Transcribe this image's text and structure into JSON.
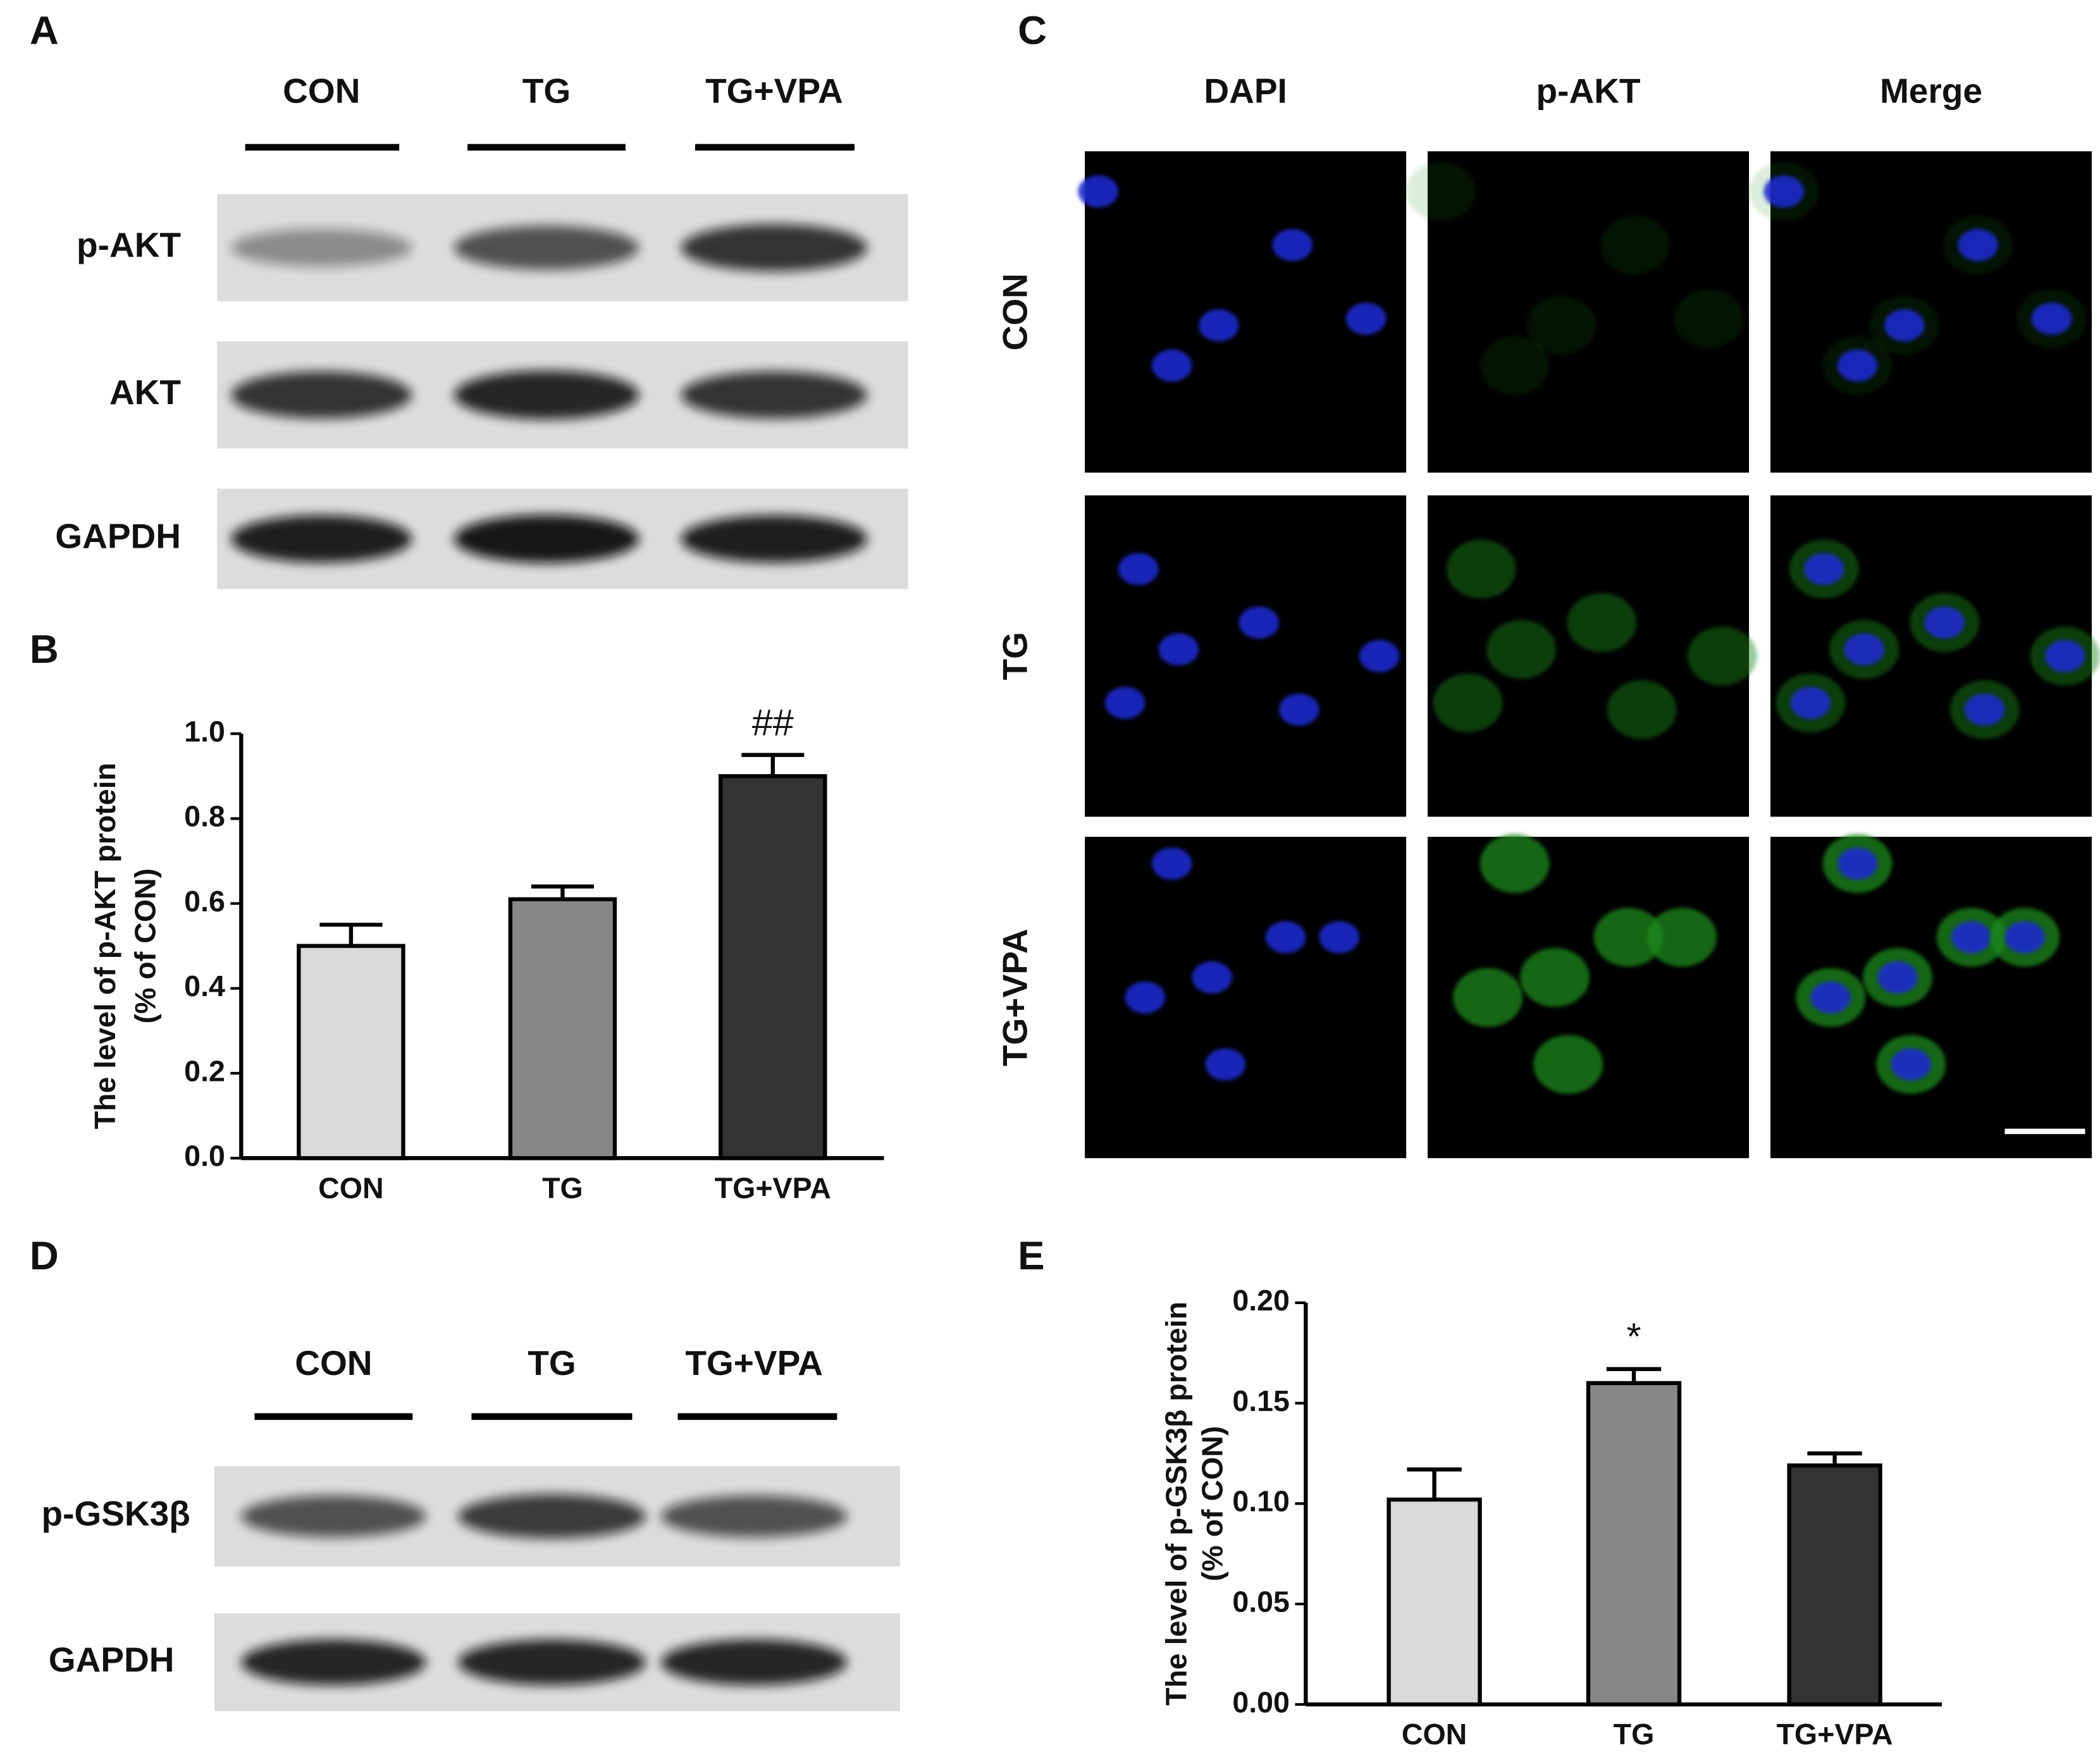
{
  "panel_labels": [
    "A",
    "B",
    "C",
    "D",
    "E"
  ],
  "blot_a": {
    "lanes": [
      "CON",
      "TG",
      "TG+VPA"
    ],
    "rows": [
      "p-AKT",
      "AKT",
      "GAPDH"
    ]
  },
  "imaging_c": {
    "columns": [
      "DAPI",
      "p-AKT",
      "Merge"
    ],
    "rows": [
      "CON",
      "TG",
      "TG+VPA"
    ]
  },
  "blot_d": {
    "lanes": [
      "CON",
      "TG",
      "TG+VPA"
    ],
    "rows": [
      "p-GSK3β",
      "GAPDH"
    ]
  },
  "chart_data": [
    {
      "type": "bar",
      "ylabel": [
        "The level of p-AKT protein",
        "(% of CON)"
      ],
      "categories": [
        "CON",
        "TG",
        "TG+VPA"
      ],
      "values": [
        0.5,
        0.61,
        0.9
      ],
      "errors": [
        0.05,
        0.03,
        0.05
      ],
      "colors": [
        "#d9d9d9",
        "#878787",
        "#333333"
      ],
      "annotations": [
        {
          "x": "TG+VPA",
          "text": "##"
        }
      ],
      "ylim": [
        0,
        1
      ],
      "yticks": [
        {
          "value": 0,
          "label": "0.0"
        },
        0.2,
        0.4,
        0.6,
        0.8,
        {
          "value": 1,
          "label": "1.0"
        }
      ]
    },
    {
      "type": "bar",
      "ylabel": [
        "The level of p-GSK3β  protein",
        "(% of CON)"
      ],
      "categories": [
        "CON",
        "TG",
        "TG+VPA"
      ],
      "values": [
        0.102,
        0.16,
        0.119
      ],
      "errors": [
        0.015,
        0.007,
        0.006
      ],
      "colors": [
        "#d9d9d9",
        "#878787",
        "#333333"
      ],
      "annotations": [
        {
          "x": "TG",
          "text": "*"
        }
      ],
      "ylim": [
        0,
        0.2
      ],
      "yticks": [
        {
          "value": 0,
          "label": "0.00"
        },
        0.05,
        {
          "value": 0.1,
          "label": "0.10"
        },
        0.15,
        {
          "value": 0.2,
          "label": "0.20"
        }
      ]
    }
  ]
}
